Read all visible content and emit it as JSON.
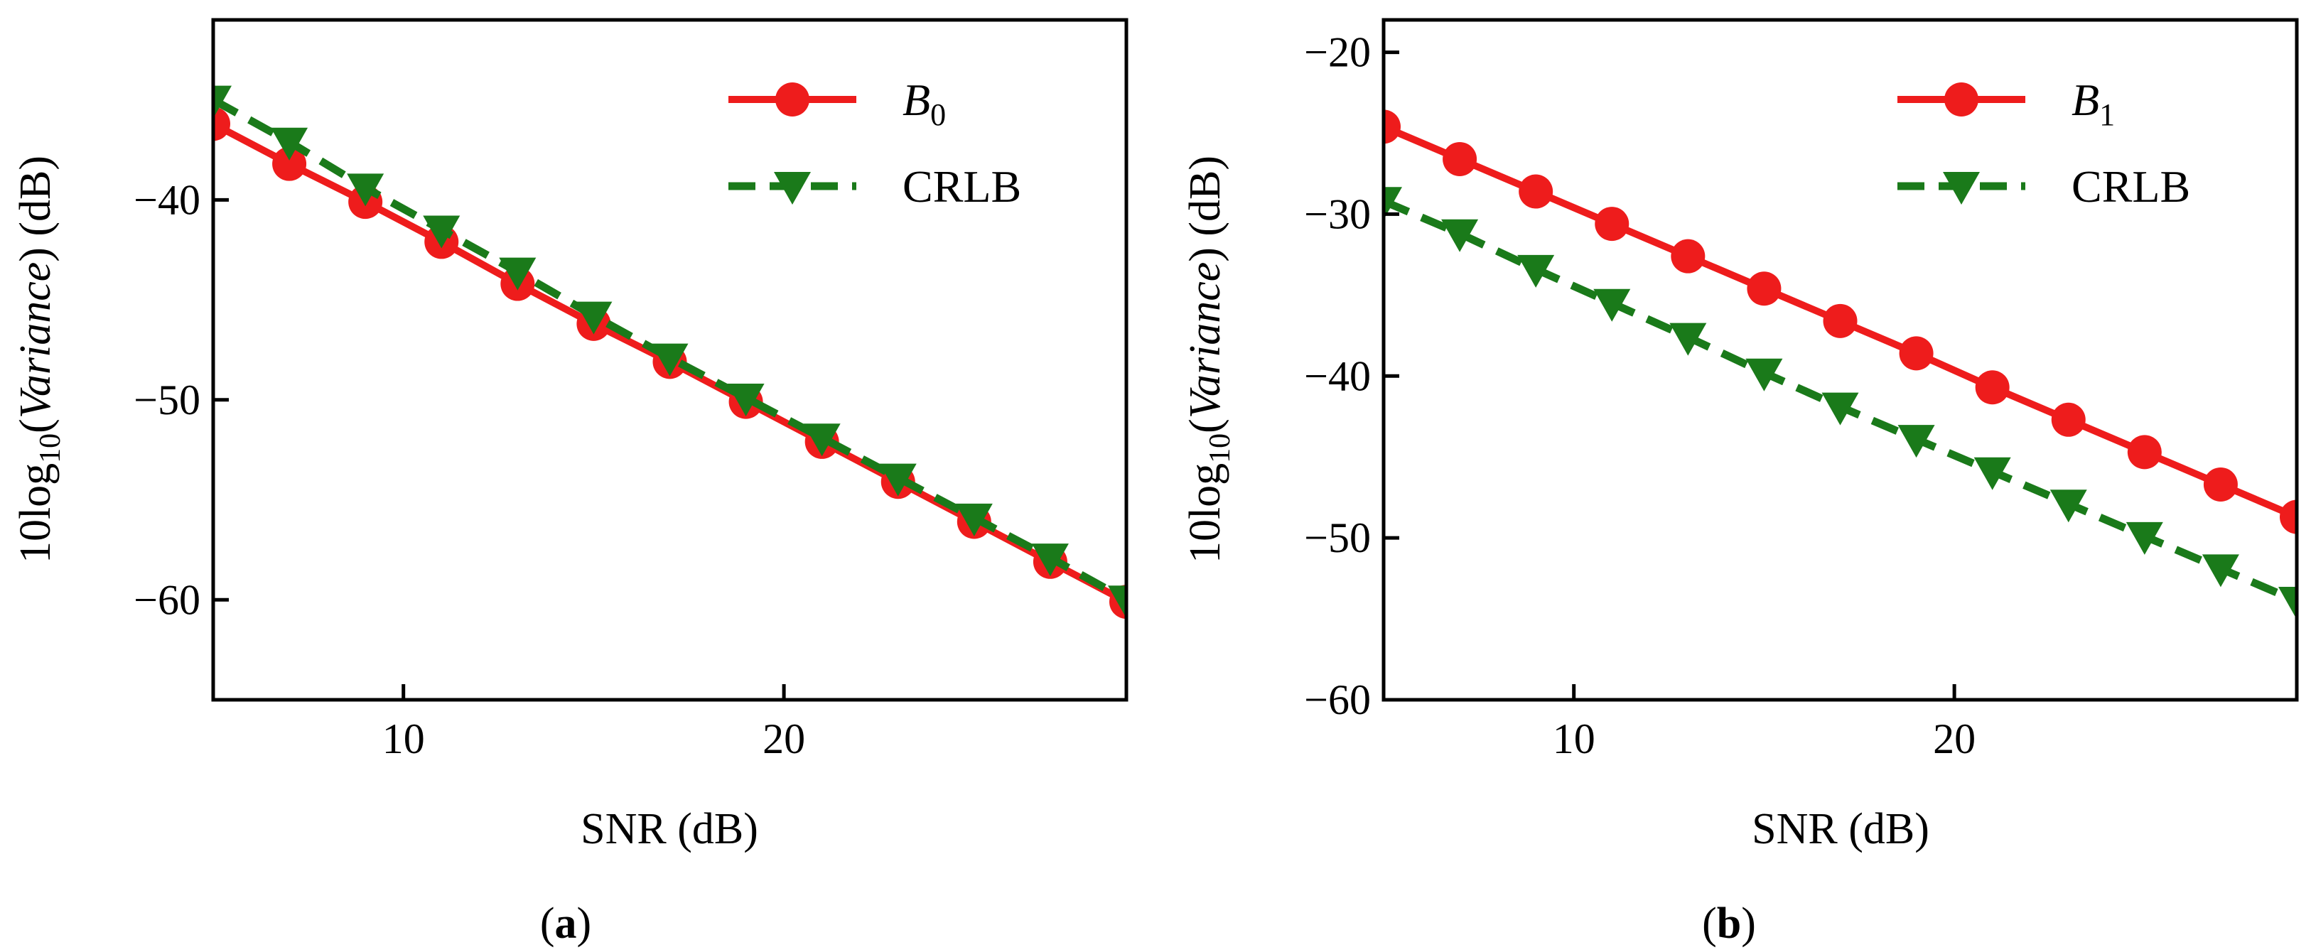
{
  "chart_data": [
    {
      "type": "line",
      "panel": "a",
      "caption_label": "a",
      "xlabel": "SNR (dB)",
      "ylabel": {
        "prefix": "10log",
        "sub": "10",
        "open": "(",
        "italic": "Variance",
        "close": ")",
        "unit": " (dB)"
      },
      "xlim": [
        5,
        29
      ],
      "ylim": [
        -65,
        -31
      ],
      "xticks": [
        10,
        20
      ],
      "yticks": [
        -60,
        -50,
        -40
      ],
      "ytick_labels": [
        "−60",
        "−50",
        "−40"
      ],
      "xtick_labels": [
        "10",
        "20"
      ],
      "legend_position": "top-right",
      "series": [
        {
          "name": "B",
          "name_sub": "0",
          "style": "solid",
          "marker": "circle",
          "color": "#ee1c1c",
          "x": [
            5,
            7,
            9,
            11,
            13,
            15,
            17,
            19,
            21,
            23,
            25,
            27,
            29
          ],
          "y": [
            -36.2,
            -38.2,
            -40.1,
            -42.1,
            -44.2,
            -46.2,
            -48.1,
            -50.1,
            -52.1,
            -54.1,
            -56.1,
            -58.1,
            -60.1
          ]
        },
        {
          "name": "CRLB",
          "style": "dashed",
          "marker": "triangle-down",
          "color": "#1a7a1a",
          "x": [
            5,
            7,
            9,
            11,
            13,
            15,
            17,
            19,
            21,
            23,
            25,
            27,
            29
          ],
          "y": [
            -35.0,
            -37.1,
            -39.4,
            -41.5,
            -43.6,
            -45.8,
            -47.9,
            -49.9,
            -51.9,
            -53.9,
            -55.9,
            -57.9,
            -60.0
          ]
        }
      ]
    },
    {
      "type": "line",
      "panel": "b",
      "caption_label": "b",
      "xlabel": "SNR (dB)",
      "ylabel": {
        "prefix": "10log",
        "sub": "10",
        "open": "(",
        "italic": "Variance",
        "close": ")",
        "unit": " (dB)"
      },
      "xlim": [
        5,
        29
      ],
      "ylim": [
        -60,
        -18
      ],
      "xticks": [
        10,
        20
      ],
      "yticks": [
        -60,
        -50,
        -40,
        -30,
        -20
      ],
      "ytick_labels": [
        "−60",
        "−50",
        "−40",
        "−30",
        "−20"
      ],
      "xtick_labels": [
        "10",
        "20"
      ],
      "legend_position": "top-right",
      "series": [
        {
          "name": "B",
          "name_sub": "1",
          "style": "solid",
          "marker": "circle",
          "color": "#ee1c1c",
          "x": [
            5,
            7,
            9,
            11,
            13,
            15,
            17,
            19,
            21,
            23,
            25,
            27,
            29
          ],
          "y": [
            -24.6,
            -26.6,
            -28.6,
            -30.6,
            -32.6,
            -34.6,
            -36.6,
            -38.6,
            -40.7,
            -42.7,
            -44.7,
            -46.7,
            -48.7
          ]
        },
        {
          "name": "CRLB",
          "style": "dashed",
          "marker": "triangle-down",
          "color": "#1a7a1a",
          "x": [
            5,
            7,
            9,
            11,
            13,
            15,
            17,
            19,
            21,
            23,
            25,
            27,
            29
          ],
          "y": [
            -29.2,
            -31.2,
            -33.4,
            -35.5,
            -37.6,
            -39.8,
            -41.9,
            -43.9,
            -45.9,
            -47.9,
            -49.9,
            -51.9,
            -53.9
          ]
        }
      ]
    }
  ]
}
